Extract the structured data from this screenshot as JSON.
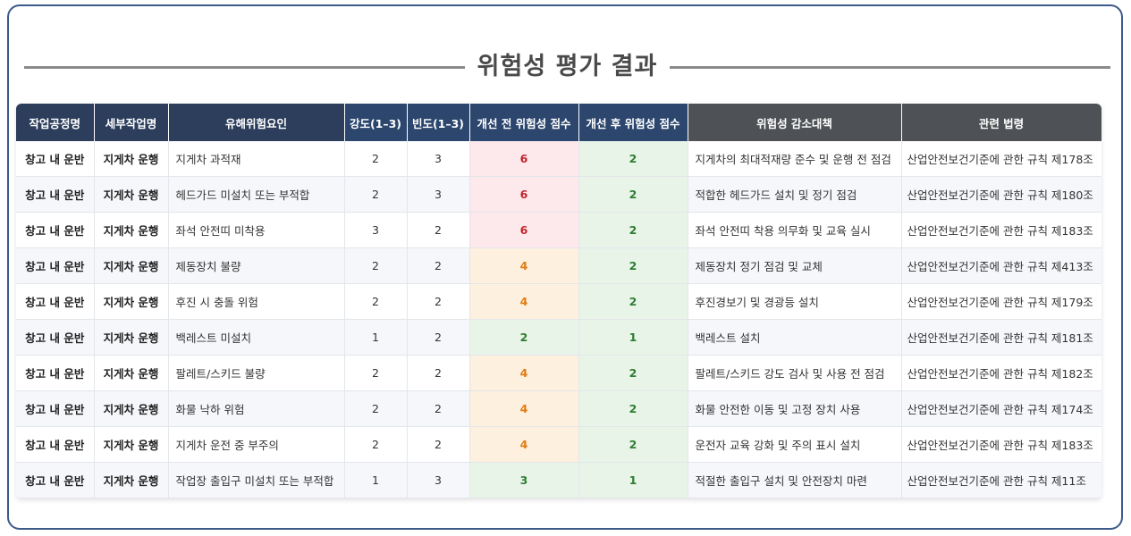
{
  "title": "위험성 평가 결과",
  "colors": {
    "high": "#c0262f",
    "medium": "#e07b12",
    "low": "#2e7d32"
  },
  "headers": [
    "작업공정명",
    "세부작업명",
    "유해위험요인",
    "강도(1–3)",
    "빈도(1–3)",
    "개선 전 위험성 점수",
    "개선 후 위험성 점수",
    "위험성 감소대책",
    "관련 법령"
  ],
  "rows": [
    {
      "process": "창고 내 운반",
      "task": "지게차 운행",
      "hazard": "지게차 과적재",
      "severity": "2",
      "frequency": "3",
      "before": "6",
      "before_level": "red",
      "after": "2",
      "after_level": "green",
      "measure": "지게차의 최대적재량 준수 및 운행 전 점검",
      "law": "산업안전보건기준에 관한 규칙 제178조"
    },
    {
      "process": "창고 내 운반",
      "task": "지게차 운행",
      "hazard": "헤드가드 미설치 또는 부적합",
      "severity": "2",
      "frequency": "3",
      "before": "6",
      "before_level": "red",
      "after": "2",
      "after_level": "green",
      "measure": "적합한 헤드가드 설치 및 정기 점검",
      "law": "산업안전보건기준에 관한 규칙 제180조"
    },
    {
      "process": "창고 내 운반",
      "task": "지게차 운행",
      "hazard": "좌석 안전띠 미착용",
      "severity": "3",
      "frequency": "2",
      "before": "6",
      "before_level": "red",
      "after": "2",
      "after_level": "green",
      "measure": "좌석 안전띠 착용 의무화 및 교육 실시",
      "law": "산업안전보건기준에 관한 규칙 제183조"
    },
    {
      "process": "창고 내 운반",
      "task": "지게차 운행",
      "hazard": "제동장치 불량",
      "severity": "2",
      "frequency": "2",
      "before": "4",
      "before_level": "orange",
      "after": "2",
      "after_level": "green",
      "measure": "제동장치 정기 점검 및 교체",
      "law": "산업안전보건기준에 관한 규칙 제413조"
    },
    {
      "process": "창고 내 운반",
      "task": "지게차 운행",
      "hazard": "후진 시 충돌 위험",
      "severity": "2",
      "frequency": "2",
      "before": "4",
      "before_level": "orange",
      "after": "2",
      "after_level": "green",
      "measure": "후진경보기 및 경광등 설치",
      "law": "산업안전보건기준에 관한 규칙 제179조"
    },
    {
      "process": "창고 내 운반",
      "task": "지게차 운행",
      "hazard": "백레스트 미설치",
      "severity": "1",
      "frequency": "2",
      "before": "2",
      "before_level": "green",
      "after": "1",
      "after_level": "green",
      "measure": "백레스트 설치",
      "law": "산업안전보건기준에 관한 규칙 제181조"
    },
    {
      "process": "창고 내 운반",
      "task": "지게차 운행",
      "hazard": "팔레트/스키드 불량",
      "severity": "2",
      "frequency": "2",
      "before": "4",
      "before_level": "orange",
      "after": "2",
      "after_level": "green",
      "measure": "팔레트/스키드 강도 검사 및 사용 전 점검",
      "law": "산업안전보건기준에 관한 규칙 제182조"
    },
    {
      "process": "창고 내 운반",
      "task": "지게차 운행",
      "hazard": "화물 낙하 위험",
      "severity": "2",
      "frequency": "2",
      "before": "4",
      "before_level": "orange",
      "after": "2",
      "after_level": "green",
      "measure": "화물 안전한 이동 및 고정 장치 사용",
      "law": "산업안전보건기준에 관한 규칙 제174조"
    },
    {
      "process": "창고 내 운반",
      "task": "지게차 운행",
      "hazard": "지게차 운전 중 부주의",
      "severity": "2",
      "frequency": "2",
      "before": "4",
      "before_level": "orange",
      "after": "2",
      "after_level": "green",
      "measure": "운전자 교육 강화 및 주의 표시 설치",
      "law": "산업안전보건기준에 관한 규칙 제183조"
    },
    {
      "process": "창고 내 운반",
      "task": "지게차 운행",
      "hazard": "작업장 출입구 미설치 또는 부적합",
      "severity": "1",
      "frequency": "3",
      "before": "3",
      "before_level": "green",
      "after": "1",
      "after_level": "green",
      "measure": "적절한 출입구 설치 및 안전장치 마련",
      "law": "산업안전보건기준에 관한 규칙 제11조"
    }
  ]
}
